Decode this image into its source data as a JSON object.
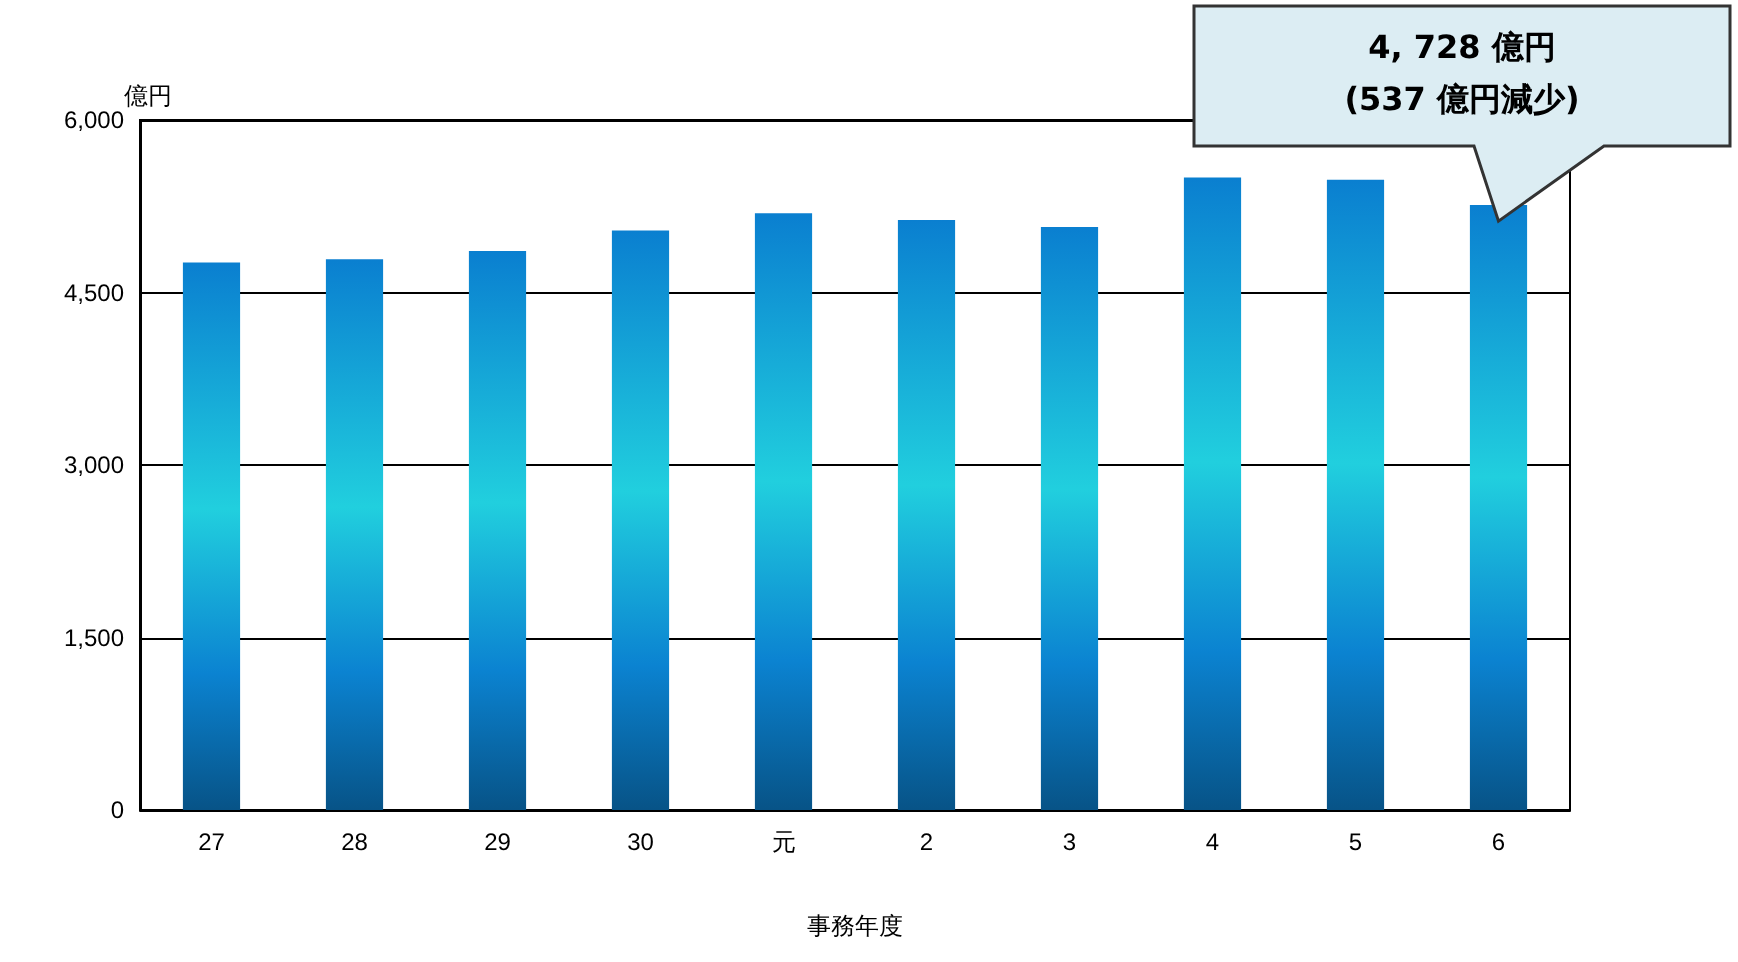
{
  "chart_data": {
    "type": "bar",
    "ylabel": "億円",
    "xlabel": "事務年度",
    "categories": [
      "27",
      "28",
      "29",
      "30",
      "元",
      "2",
      "3",
      "4",
      "5",
      "6"
    ],
    "values": [
      4760,
      4790,
      4860,
      5040,
      5190,
      5130,
      5070,
      5500,
      5480,
      5260
    ],
    "color": "#0a7fd0",
    "ylim": [
      0,
      6000
    ],
    "yticks": [
      0,
      {
        "value": 1500,
        "label": "1,500"
      },
      {
        "value": 3000,
        "label": "3,000"
      },
      {
        "value": 4500,
        "label": "4,500"
      },
      {
        "value": 6000,
        "label": "6,000"
      }
    ],
    "grid": "y",
    "annotations": [
      "4, 728 億円",
      "(537 億円減少)"
    ]
  }
}
